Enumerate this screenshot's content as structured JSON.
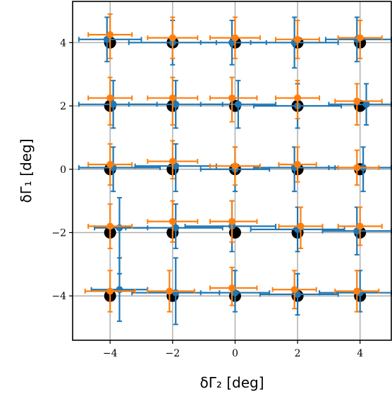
{
  "chart_data": {
    "type": "scatter",
    "xlabel": "δΓ₂ [deg]",
    "ylabel": "δΓ₁ [deg]",
    "xlim": [
      -5.2,
      5.0
    ],
    "ylim": [
      -5.4,
      5.3
    ],
    "x_ticks": [
      -4,
      -2,
      0,
      2,
      4
    ],
    "x_tick_labels": [
      "−4",
      "−2",
      "0",
      "2",
      "4"
    ],
    "y_ticks": [
      -4,
      -2,
      0,
      2,
      4
    ],
    "y_tick_labels": [
      "−4",
      "−2",
      "0",
      "2",
      "4"
    ],
    "grid": true,
    "colors": {
      "truth": "#000000",
      "blue": "#1f77b4",
      "orange": "#ff7f0e",
      "grid": "#b0b0b0"
    },
    "series": [
      {
        "marker": "truth",
        "points": [
          {
            "x": -4,
            "y": 4
          },
          {
            "x": -2,
            "y": 4
          },
          {
            "x": 0,
            "y": 4
          },
          {
            "x": 2,
            "y": 4
          },
          {
            "x": 4,
            "y": 4
          },
          {
            "x": -4,
            "y": 2
          },
          {
            "x": -2,
            "y": 2
          },
          {
            "x": 0,
            "y": 2
          },
          {
            "x": 2,
            "y": 2
          },
          {
            "x": 4,
            "y": 2
          },
          {
            "x": -4,
            "y": 0
          },
          {
            "x": -2,
            "y": 0
          },
          {
            "x": 0,
            "y": 0
          },
          {
            "x": 2,
            "y": 0
          },
          {
            "x": 4,
            "y": 0
          },
          {
            "x": -4,
            "y": -2
          },
          {
            "x": -2,
            "y": -2
          },
          {
            "x": 0,
            "y": -2
          },
          {
            "x": 2,
            "y": -2
          },
          {
            "x": 4,
            "y": -2
          },
          {
            "x": -4,
            "y": -4
          },
          {
            "x": -2,
            "y": -4
          },
          {
            "x": 0,
            "y": -4
          },
          {
            "x": 2,
            "y": -4
          },
          {
            "x": 4,
            "y": -4
          }
        ]
      },
      {
        "marker": "blue",
        "points": [
          {
            "x": -4.1,
            "y": 4.1,
            "xlo": -5.0,
            "xhi": -3.0,
            "ylo": 3.4,
            "yhi": 4.8
          },
          {
            "x": -2.0,
            "y": 4.0,
            "xlo": -3.4,
            "xhi": -0.6,
            "ylo": 3.3,
            "yhi": 4.7
          },
          {
            "x": -0.1,
            "y": 4.0,
            "xlo": -1.1,
            "xhi": 1.0,
            "ylo": 3.3,
            "yhi": 4.7
          },
          {
            "x": 1.9,
            "y": 4.0,
            "xlo": 0.5,
            "xhi": 3.3,
            "ylo": 3.2,
            "yhi": 4.8
          },
          {
            "x": 3.9,
            "y": 4.1,
            "xlo": 2.9,
            "xhi": 5.0,
            "ylo": 3.4,
            "yhi": 4.8
          },
          {
            "x": -3.9,
            "y": 2.05,
            "xlo": -5.0,
            "xhi": -2.5,
            "ylo": 1.3,
            "yhi": 2.8
          },
          {
            "x": -1.9,
            "y": 2.05,
            "xlo": -3.4,
            "xhi": -0.4,
            "ylo": 1.3,
            "yhi": 2.8
          },
          {
            "x": 0.1,
            "y": 2.05,
            "xlo": -1.1,
            "xhi": 1.3,
            "ylo": 1.3,
            "yhi": 2.8
          },
          {
            "x": 2.0,
            "y": 2.0,
            "xlo": 0.6,
            "xhi": 3.4,
            "ylo": 1.3,
            "yhi": 2.7
          },
          {
            "x": 4.2,
            "y": 2.05,
            "xlo": 3.0,
            "xhi": 5.0,
            "ylo": 1.4,
            "yhi": 2.7
          },
          {
            "x": -3.9,
            "y": 0.05,
            "xlo": -5.0,
            "xhi": -2.4,
            "ylo": -0.7,
            "yhi": 0.7
          },
          {
            "x": -1.9,
            "y": 0.1,
            "xlo": -3.2,
            "xhi": -0.6,
            "ylo": -0.7,
            "yhi": 0.8
          },
          {
            "x": 0.0,
            "y": 0.0,
            "xlo": -1.1,
            "xhi": 1.1,
            "ylo": -0.7,
            "yhi": 0.7
          },
          {
            "x": 1.9,
            "y": 0.05,
            "xlo": 0.6,
            "xhi": 3.2,
            "ylo": -0.7,
            "yhi": 0.7
          },
          {
            "x": 4.1,
            "y": 0.05,
            "xlo": 3.0,
            "xhi": 5.0,
            "ylo": -0.7,
            "yhi": 0.7
          },
          {
            "x": -3.7,
            "y": -1.85,
            "xlo": -4.5,
            "xhi": -2.8,
            "ylo": -3.3,
            "yhi": -0.9
          },
          {
            "x": -1.9,
            "y": -1.85,
            "xlo": -3.5,
            "xhi": -0.4,
            "ylo": -2.5,
            "yhi": -1.1
          },
          {
            "x": -0.1,
            "y": -1.8,
            "xlo": -1.6,
            "xhi": 1.3,
            "ylo": -2.6,
            "yhi": -1.0
          },
          {
            "x": 2.0,
            "y": -1.9,
            "xlo": 0.5,
            "xhi": 3.5,
            "ylo": -2.6,
            "yhi": -1.2
          },
          {
            "x": 3.9,
            "y": -1.95,
            "xlo": 2.8,
            "xhi": 5.0,
            "ylo": -2.7,
            "yhi": -1.2
          },
          {
            "x": -3.7,
            "y": -3.8,
            "xlo": -4.6,
            "xhi": -2.8,
            "ylo": -4.8,
            "yhi": -2.8
          },
          {
            "x": -1.9,
            "y": -3.9,
            "xlo": -3.3,
            "xhi": -0.5,
            "ylo": -4.9,
            "yhi": -2.8
          },
          {
            "x": 0.0,
            "y": -3.9,
            "xlo": -1.1,
            "xhi": 1.1,
            "ylo": -4.5,
            "yhi": -3.2
          },
          {
            "x": 2.0,
            "y": -3.95,
            "xlo": 0.8,
            "xhi": 3.3,
            "ylo": -4.6,
            "yhi": -3.3
          },
          {
            "x": 4.0,
            "y": -3.9,
            "xlo": 2.7,
            "xhi": 5.0,
            "ylo": -4.5,
            "yhi": -3.2
          }
        ]
      },
      {
        "marker": "orange",
        "points": [
          {
            "x": -4.0,
            "y": 4.25,
            "xlo": -4.7,
            "xhi": -3.3,
            "ylo": 3.5,
            "yhi": 4.9
          },
          {
            "x": -2.0,
            "y": 4.15,
            "xlo": -2.8,
            "xhi": -1.2,
            "ylo": 3.5,
            "yhi": 4.8
          },
          {
            "x": 0.0,
            "y": 4.15,
            "xlo": -0.8,
            "xhi": 0.8,
            "ylo": 3.5,
            "yhi": 4.8
          },
          {
            "x": 2.0,
            "y": 4.1,
            "xlo": 1.3,
            "xhi": 2.7,
            "ylo": 3.5,
            "yhi": 4.7
          },
          {
            "x": 4.0,
            "y": 4.15,
            "xlo": 3.3,
            "xhi": 4.7,
            "ylo": 3.5,
            "yhi": 4.7
          },
          {
            "x": -4.0,
            "y": 2.25,
            "xlo": -4.7,
            "xhi": -3.3,
            "ylo": 1.4,
            "yhi": 2.9
          },
          {
            "x": -2.0,
            "y": 2.25,
            "xlo": -2.8,
            "xhi": -1.2,
            "ylo": 1.4,
            "yhi": 2.9
          },
          {
            "x": -0.1,
            "y": 2.25,
            "xlo": -0.8,
            "xhi": 0.7,
            "ylo": 1.5,
            "yhi": 2.9
          },
          {
            "x": 2.0,
            "y": 2.25,
            "xlo": 1.3,
            "xhi": 2.7,
            "ylo": 1.6,
            "yhi": 2.8
          },
          {
            "x": 3.9,
            "y": 2.15,
            "xlo": 3.2,
            "xhi": 4.7,
            "ylo": 1.4,
            "yhi": 2.7
          },
          {
            "x": -4.0,
            "y": 0.15,
            "xlo": -4.7,
            "xhi": -3.3,
            "ylo": -0.5,
            "yhi": 0.8
          },
          {
            "x": -2.0,
            "y": 0.25,
            "xlo": -2.8,
            "xhi": -1.2,
            "ylo": -0.3,
            "yhi": 0.9
          },
          {
            "x": 0.0,
            "y": 0.1,
            "xlo": -0.8,
            "xhi": 0.8,
            "ylo": -0.5,
            "yhi": 0.7
          },
          {
            "x": 2.0,
            "y": 0.15,
            "xlo": 1.4,
            "xhi": 2.6,
            "ylo": -0.4,
            "yhi": 0.7
          },
          {
            "x": 3.9,
            "y": 0.05,
            "xlo": 3.3,
            "xhi": 4.6,
            "ylo": -0.5,
            "yhi": 0.6
          },
          {
            "x": -4.0,
            "y": -1.8,
            "xlo": -4.7,
            "xhi": -3.3,
            "ylo": -2.5,
            "yhi": -1.1
          },
          {
            "x": -2.0,
            "y": -1.65,
            "xlo": -2.8,
            "xhi": -1.2,
            "ylo": -2.3,
            "yhi": -1.0
          },
          {
            "x": -0.1,
            "y": -1.65,
            "xlo": -0.8,
            "xhi": 0.7,
            "ylo": -2.3,
            "yhi": -1.0
          },
          {
            "x": 2.1,
            "y": -1.8,
            "xlo": 1.4,
            "xhi": 2.8,
            "ylo": -2.5,
            "yhi": -1.2
          },
          {
            "x": 4.0,
            "y": -1.8,
            "xlo": 3.3,
            "xhi": 4.7,
            "ylo": -2.4,
            "yhi": -1.2
          },
          {
            "x": -4.0,
            "y": -3.85,
            "xlo": -4.8,
            "xhi": -3.2,
            "ylo": -4.5,
            "yhi": -3.2
          },
          {
            "x": -2.1,
            "y": -3.85,
            "xlo": -2.8,
            "xhi": -1.3,
            "ylo": -4.5,
            "yhi": -3.2
          },
          {
            "x": -0.1,
            "y": -3.75,
            "xlo": -0.8,
            "xhi": 0.7,
            "ylo": -4.3,
            "yhi": -3.1
          },
          {
            "x": 1.9,
            "y": -3.8,
            "xlo": 1.2,
            "xhi": 2.6,
            "ylo": -4.4,
            "yhi": -3.2
          },
          {
            "x": 3.9,
            "y": -3.85,
            "xlo": 3.2,
            "xhi": 4.6,
            "ylo": -4.5,
            "yhi": -3.2
          }
        ]
      }
    ]
  }
}
